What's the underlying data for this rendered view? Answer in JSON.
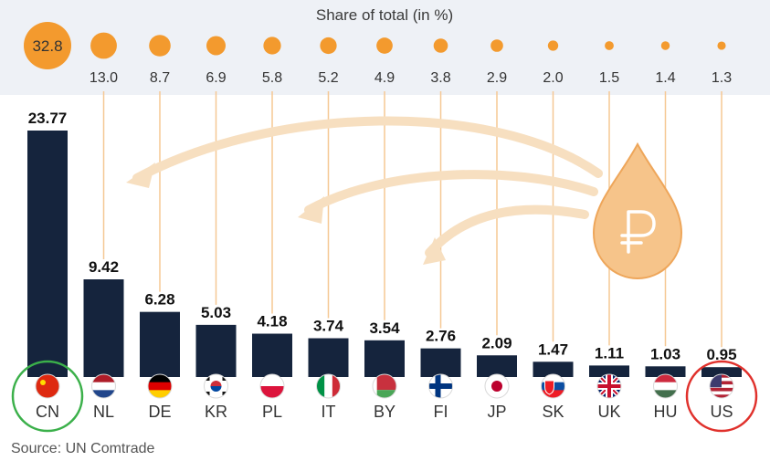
{
  "chart_data": {
    "type": "bar",
    "share_title": "Share of total (in %)",
    "categories": [
      "CN",
      "NL",
      "DE",
      "KR",
      "PL",
      "IT",
      "BY",
      "FI",
      "JP",
      "SK",
      "UK",
      "HU",
      "US"
    ],
    "values": [
      23.77,
      9.42,
      6.28,
      5.03,
      4.18,
      3.74,
      3.54,
      2.76,
      2.09,
      1.47,
      1.11,
      1.03,
      0.95
    ],
    "value_labels": [
      "23.77",
      "9.42",
      "6.28",
      "5.03",
      "4.18",
      "3.74",
      "3.54",
      "2.76",
      "2.09",
      "1.47",
      "1.11",
      "1.03",
      "0.95"
    ],
    "shares": [
      32.8,
      13.0,
      8.7,
      6.9,
      5.8,
      5.2,
      4.9,
      3.8,
      2.9,
      2.0,
      1.5,
      1.4,
      1.3
    ],
    "share_labels": [
      "32.8",
      "13.0",
      "8.7",
      "6.9",
      "5.8",
      "5.2",
      "4.9",
      "3.8",
      "2.9",
      "2.0",
      "1.5",
      "1.4",
      "1.3"
    ],
    "highlighted": [
      "CN",
      "US"
    ],
    "ylim": [
      0,
      23.77
    ],
    "source": "Source: UN Comtrade"
  },
  "colors": {
    "bar": "#15243d",
    "bubble": "#f39a2e",
    "bubble_band": "#eef1f6",
    "connector": "#f5c894",
    "arrow": "#f7dfc0",
    "drop": "#f6c48a",
    "drop_stroke": "#eea65a",
    "highlight_cn": "#3bb04a",
    "highlight_us": "#e0312c"
  },
  "icons": {
    "ruble_drop": "ruble-drop-icon",
    "flags": [
      "china-flag-icon",
      "netherlands-flag-icon",
      "germany-flag-icon",
      "south-korea-flag-icon",
      "poland-flag-icon",
      "italy-flag-icon",
      "belarus-flag-icon",
      "finland-flag-icon",
      "japan-flag-icon",
      "slovakia-flag-icon",
      "uk-flag-icon",
      "hungary-flag-icon",
      "us-flag-icon"
    ]
  }
}
